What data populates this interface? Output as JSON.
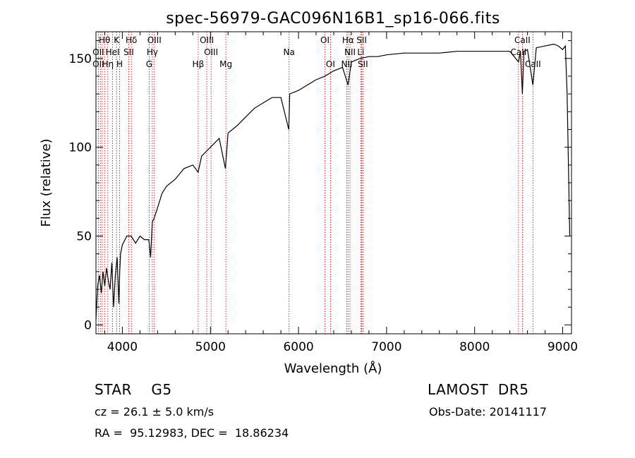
{
  "chart_data": {
    "type": "line",
    "title": "spec-56979-GAC096N16B1_sp16-066.fits",
    "xlabel": "Wavelength (Å)",
    "ylabel": "Flux (relative)",
    "xlim": [
      3700,
      9100
    ],
    "ylim": [
      -5,
      165
    ],
    "x_ticks": [
      4000,
      5000,
      6000,
      7000,
      8000,
      9000
    ],
    "y_ticks": [
      0,
      50,
      100,
      150
    ],
    "x_tick_labels": [
      "4000",
      "5000",
      "6000",
      "7000",
      "8000",
      "9000"
    ],
    "y_tick_labels": [
      "0",
      "50",
      "100",
      "150"
    ],
    "grid": false,
    "line_color": "#000000",
    "marker_color": "#cc0000",
    "series": [
      {
        "x": [
          3700,
          3720,
          3740,
          3760,
          3780,
          3800,
          3820,
          3840,
          3860,
          3880,
          3900,
          3920,
          3940,
          3960,
          3970,
          3980,
          4000,
          4050,
          4100,
          4150,
          4200,
          4250,
          4300,
          4320,
          4340,
          4360,
          4400,
          4450,
          4500,
          4600,
          4700,
          4800,
          4860,
          4900,
          5000,
          5100,
          5170,
          5200,
          5300,
          5400,
          5500,
          5600,
          5700,
          5800,
          5890,
          5900,
          6000,
          6100,
          6200,
          6300,
          6400,
          6500,
          6563,
          6600,
          6700,
          6800,
          6900,
          7000,
          7200,
          7400,
          7600,
          7800,
          8000,
          8200,
          8400,
          8498,
          8520,
          8542,
          8560,
          8600,
          8662,
          8700,
          8800,
          8900,
          8950,
          9000,
          9030,
          9050,
          9080
        ],
        "y": [
          3,
          22,
          28,
          18,
          30,
          22,
          32,
          25,
          20,
          35,
          10,
          28,
          38,
          12,
          30,
          40,
          45,
          50,
          50,
          46,
          50,
          48,
          48,
          38,
          58,
          60,
          66,
          74,
          78,
          82,
          88,
          90,
          86,
          95,
          100,
          105,
          88,
          108,
          112,
          117,
          122,
          125,
          128,
          128,
          110,
          130,
          132,
          135,
          138,
          140,
          143,
          145,
          135,
          148,
          150,
          151,
          151,
          152,
          153,
          153,
          153,
          154,
          154,
          154,
          154,
          148,
          154,
          130,
          154,
          155,
          135,
          156,
          157,
          158,
          157,
          155,
          157,
          130,
          50
        ]
      }
    ],
    "spectral_lines": [
      {
        "label": "Hθ",
        "wavelength": 3798,
        "row": 0
      },
      {
        "label": "K",
        "wavelength": 3934,
        "row": 0
      },
      {
        "label": "Hδ",
        "wavelength": 4102,
        "row": 0
      },
      {
        "label": "OIII",
        "wavelength": 4363,
        "row": 0
      },
      {
        "label": "OIII",
        "wavelength": 4959,
        "row": 0
      },
      {
        "label": "OI",
        "wavelength": 6300,
        "row": 0
      },
      {
        "label": "Hα",
        "wavelength": 6563,
        "row": 0
      },
      {
        "label": "SII",
        "wavelength": 6717,
        "row": 0
      },
      {
        "label": "CaII",
        "wavelength": 8542,
        "row": 0
      },
      {
        "label": "OII",
        "wavelength": 3727,
        "row": 1
      },
      {
        "label": "HeI",
        "wavelength": 3889,
        "row": 1
      },
      {
        "label": "SII",
        "wavelength": 4072,
        "row": 1
      },
      {
        "label": "Hγ",
        "wavelength": 4340,
        "row": 1
      },
      {
        "label": "OIII",
        "wavelength": 5007,
        "row": 1
      },
      {
        "label": "Na",
        "wavelength": 5893,
        "row": 1
      },
      {
        "label": "NII",
        "wavelength": 6584,
        "row": 1
      },
      {
        "label": "Li",
        "wavelength": 6708,
        "row": 1
      },
      {
        "label": "CaII",
        "wavelength": 8498,
        "row": 1
      },
      {
        "label": "OII",
        "wavelength": 3727,
        "row": 2
      },
      {
        "label": "Hη",
        "wavelength": 3835,
        "row": 2
      },
      {
        "label": "H",
        "wavelength": 3968,
        "row": 2
      },
      {
        "label": "G",
        "wavelength": 4304,
        "row": 2
      },
      {
        "label": "Hβ",
        "wavelength": 4861,
        "row": 2
      },
      {
        "label": "Mg",
        "wavelength": 5175,
        "row": 2
      },
      {
        "label": "OI",
        "wavelength": 6363,
        "row": 2
      },
      {
        "label": "NII",
        "wavelength": 6548,
        "row": 2
      },
      {
        "label": "SII",
        "wavelength": 6731,
        "row": 2
      },
      {
        "label": "CaII",
        "wavelength": 8662,
        "row": 2
      }
    ],
    "marker_wavelengths": [
      3727,
      3750,
      3771,
      3798,
      3835,
      3889,
      3934,
      3968,
      4072,
      4102,
      4304,
      4340,
      4363,
      4861,
      4959,
      5007,
      5175,
      5893,
      6300,
      6363,
      6548,
      6563,
      6584,
      6708,
      6717,
      6731,
      8498,
      8542,
      8662
    ]
  },
  "info": {
    "class_text": "STAR    G5",
    "survey": "LAMOST  DR5",
    "cz": "cz = 26.1 ± 5.0 km/s",
    "obs_date": "Obs-Date: 20141117",
    "coords": "RA =  95.12983, DEC =  18.86234"
  }
}
